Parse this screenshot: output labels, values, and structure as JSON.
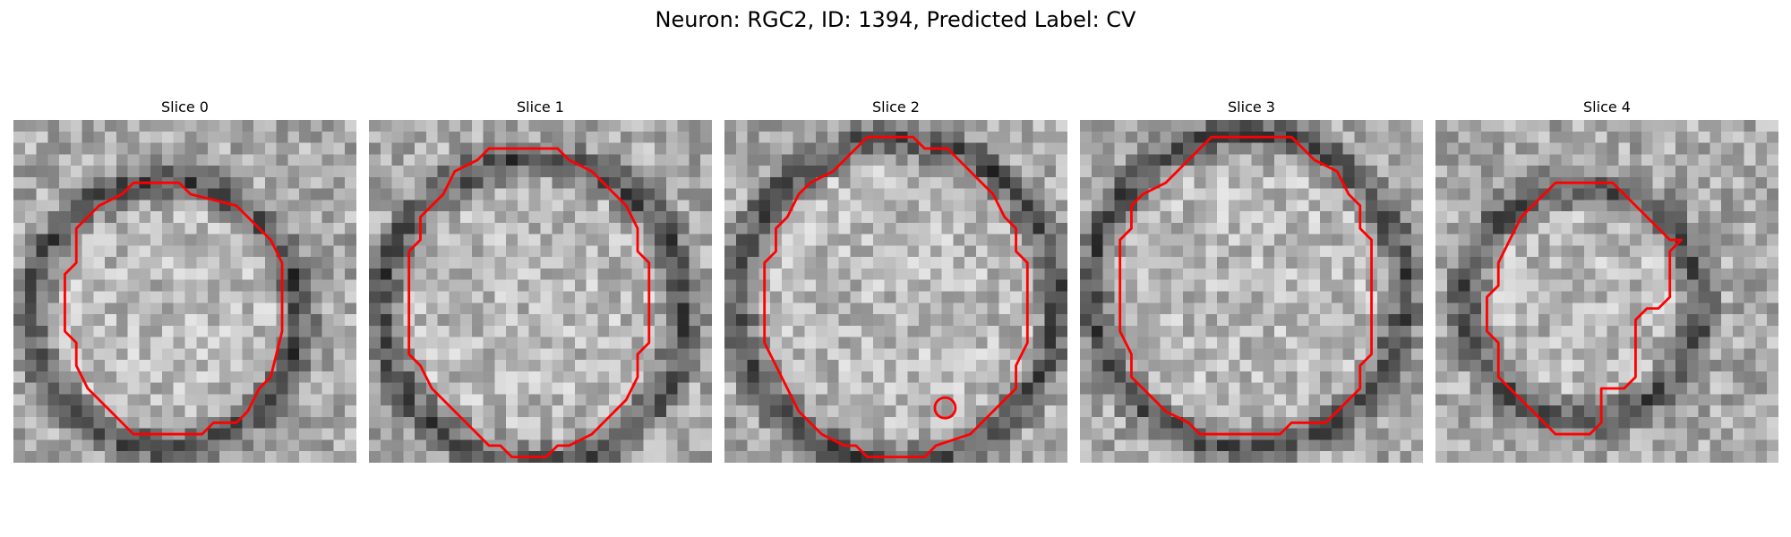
{
  "figure": {
    "title": "Neuron: RGC2, ID: 1394, Predicted Label: CV"
  },
  "slices": [
    {
      "title": "Slice 0",
      "seed": 11,
      "contour": [
        [
          10.5,
          5.5
        ],
        [
          14.5,
          5.5
        ],
        [
          15.5,
          6.5
        ],
        [
          19.5,
          7.5
        ],
        [
          21.5,
          9.5
        ],
        [
          22.5,
          10.5
        ],
        [
          23.5,
          12.5
        ],
        [
          23.5,
          18.5
        ],
        [
          22.5,
          22.5
        ],
        [
          21.5,
          23.5
        ],
        [
          20.5,
          25.5
        ],
        [
          19.5,
          26.5
        ],
        [
          17.5,
          26.5
        ],
        [
          16.5,
          27.5
        ],
        [
          13.5,
          27.5
        ],
        [
          10.5,
          27.5
        ],
        [
          9.5,
          26.5
        ],
        [
          8.5,
          25.5
        ],
        [
          6.5,
          23.5
        ],
        [
          5.5,
          21.5
        ],
        [
          5.5,
          19.5
        ],
        [
          4.5,
          18.5
        ],
        [
          4.5,
          13.5
        ],
        [
          5.5,
          12.5
        ],
        [
          5.5,
          9.5
        ],
        [
          6.5,
          8.5
        ],
        [
          7.5,
          7.5
        ],
        [
          9.5,
          6.5
        ]
      ]
    },
    {
      "title": "Slice 1",
      "seed": 23,
      "contour": [
        [
          10.5,
          2.5
        ],
        [
          16.5,
          2.5
        ],
        [
          17.5,
          3.5
        ],
        [
          19.5,
          4.5
        ],
        [
          21.5,
          6.5
        ],
        [
          22.5,
          7.5
        ],
        [
          23.5,
          9.5
        ],
        [
          23.5,
          11.5
        ],
        [
          24.5,
          12.5
        ],
        [
          24.5,
          19.5
        ],
        [
          23.5,
          20.5
        ],
        [
          23.5,
          22.5
        ],
        [
          22.5,
          24.5
        ],
        [
          21.5,
          25.5
        ],
        [
          20.5,
          26.5
        ],
        [
          19.5,
          27.5
        ],
        [
          17.5,
          28.5
        ],
        [
          16.5,
          28.5
        ],
        [
          15.5,
          29.5
        ],
        [
          12.5,
          29.5
        ],
        [
          11.5,
          28.5
        ],
        [
          10.5,
          28.5
        ],
        [
          8.5,
          26.5
        ],
        [
          6.5,
          24.5
        ],
        [
          5.5,
          23.5
        ],
        [
          4.5,
          21.5
        ],
        [
          3.5,
          20.5
        ],
        [
          3.5,
          11.5
        ],
        [
          4.5,
          10.5
        ],
        [
          4.5,
          8.5
        ],
        [
          5.5,
          7.5
        ],
        [
          6.5,
          6.5
        ],
        [
          7.5,
          4.5
        ],
        [
          9.5,
          3.5
        ]
      ]
    },
    {
      "title": "Slice 2",
      "seed": 37,
      "contour": [
        [
          12.5,
          1.5
        ],
        [
          16.5,
          1.5
        ],
        [
          17.5,
          2.5
        ],
        [
          19.5,
          2.5
        ],
        [
          20.5,
          3.5
        ],
        [
          22.5,
          5.5
        ],
        [
          23.5,
          6.5
        ],
        [
          24.5,
          8.5
        ],
        [
          25.5,
          9.5
        ],
        [
          25.5,
          11.5
        ],
        [
          26.5,
          12.5
        ],
        [
          26.5,
          19.5
        ],
        [
          25.5,
          21.5
        ],
        [
          25.5,
          23.5
        ],
        [
          24.5,
          24.5
        ],
        [
          23.5,
          25.5
        ],
        [
          22.5,
          26.5
        ],
        [
          21.5,
          27.5
        ],
        [
          18.5,
          28.5
        ],
        [
          17.5,
          29.5
        ],
        [
          15.5,
          29.5
        ],
        [
          12.5,
          29.5
        ],
        [
          11.5,
          28.5
        ],
        [
          10.5,
          28.5
        ],
        [
          8.5,
          27.5
        ],
        [
          7.5,
          26.5
        ],
        [
          6.5,
          25.5
        ],
        [
          5.5,
          23.5
        ],
        [
          4.5,
          21.5
        ],
        [
          3.5,
          19.5
        ],
        [
          3.5,
          12.5
        ],
        [
          4.5,
          11.5
        ],
        [
          4.5,
          9.5
        ],
        [
          5.5,
          8.5
        ],
        [
          6.5,
          6.5
        ],
        [
          7.5,
          5.5
        ],
        [
          9.5,
          4.5
        ],
        [
          10.5,
          3.5
        ],
        [
          11.5,
          2.5
        ]
      ]
    },
    {
      "title": "Slice 3",
      "seed": 53,
      "contour": [
        [
          11.5,
          1.5
        ],
        [
          18.5,
          1.5
        ],
        [
          19.5,
          2.5
        ],
        [
          20.5,
          3.5
        ],
        [
          22.5,
          4.5
        ],
        [
          23.5,
          6.5
        ],
        [
          24.5,
          7.5
        ],
        [
          24.5,
          9.5
        ],
        [
          25.5,
          10.5
        ],
        [
          25.5,
          12.5
        ],
        [
          25.5,
          20.5
        ],
        [
          24.5,
          21.5
        ],
        [
          24.5,
          23.5
        ],
        [
          23.5,
          24.5
        ],
        [
          22.5,
          25.5
        ],
        [
          21.5,
          26.5
        ],
        [
          18.5,
          26.5
        ],
        [
          17.5,
          27.5
        ],
        [
          14.5,
          27.5
        ],
        [
          10.5,
          27.5
        ],
        [
          9.5,
          26.5
        ],
        [
          7.5,
          25.5
        ],
        [
          6.5,
          24.5
        ],
        [
          5.5,
          23.5
        ],
        [
          4.5,
          22.5
        ],
        [
          4.5,
          20.5
        ],
        [
          3.5,
          18.5
        ],
        [
          3.5,
          10.5
        ],
        [
          4.5,
          9.5
        ],
        [
          4.5,
          7.5
        ],
        [
          5.5,
          6.5
        ],
        [
          7.5,
          5.5
        ],
        [
          8.5,
          4.5
        ],
        [
          9.5,
          3.5
        ],
        [
          10.5,
          2.5
        ]
      ]
    },
    {
      "title": "Slice 4",
      "seed": 71,
      "contour": [
        [
          10.5,
          5.5
        ],
        [
          15.5,
          5.5
        ],
        [
          16.5,
          6.5
        ],
        [
          17.5,
          7.5
        ],
        [
          18.5,
          8.5
        ],
        [
          19.5,
          9.5
        ],
        [
          20.5,
          10.5
        ],
        [
          21.5,
          10.5
        ],
        [
          20.5,
          11.5
        ],
        [
          20.5,
          15.5
        ],
        [
          19.5,
          16.5
        ],
        [
          18.5,
          16.5
        ],
        [
          17.5,
          17.5
        ],
        [
          17.5,
          22.5
        ],
        [
          16.5,
          23.5
        ],
        [
          15.5,
          23.5
        ],
        [
          14.5,
          23.5
        ],
        [
          14.5,
          26.5
        ],
        [
          13.5,
          27.5
        ],
        [
          10.5,
          27.5
        ],
        [
          9.5,
          26.5
        ],
        [
          8.5,
          25.5
        ],
        [
          6.5,
          23.5
        ],
        [
          5.5,
          22.5
        ],
        [
          5.5,
          19.5
        ],
        [
          4.5,
          18.5
        ],
        [
          4.5,
          15.5
        ],
        [
          5.5,
          14.5
        ],
        [
          5.5,
          12.5
        ],
        [
          6.5,
          10.5
        ],
        [
          7.5,
          8.5
        ],
        [
          8.5,
          7.5
        ],
        [
          9.5,
          6.5
        ]
      ]
    }
  ]
}
